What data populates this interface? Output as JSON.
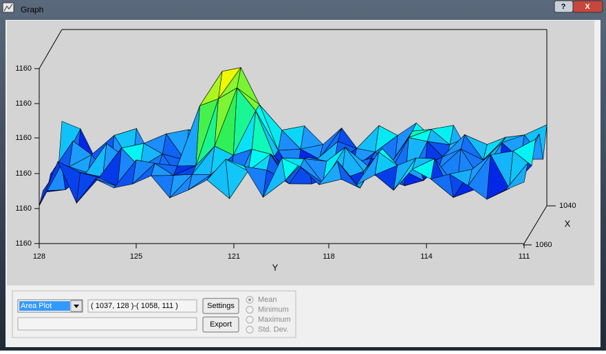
{
  "window": {
    "title": "Graph",
    "help": "?",
    "close": "X"
  },
  "plot": {
    "z_ticks": [
      "1160",
      "1160",
      "1160",
      "1160",
      "1160",
      "1160"
    ],
    "y_ticks": [
      "128",
      "125",
      "121",
      "118",
      "114",
      "111"
    ],
    "y_label": "Y",
    "x_ticks": [
      "1040",
      "1060"
    ],
    "x_label": "X"
  },
  "controls": {
    "plot_type": "Area Plot",
    "range": "( 1037, 128 )-( 1058, 111 )",
    "settings": "Settings",
    "export": "Export",
    "options": [
      "Mean",
      "Minimum",
      "Maximum",
      "Std. Dev."
    ]
  }
}
